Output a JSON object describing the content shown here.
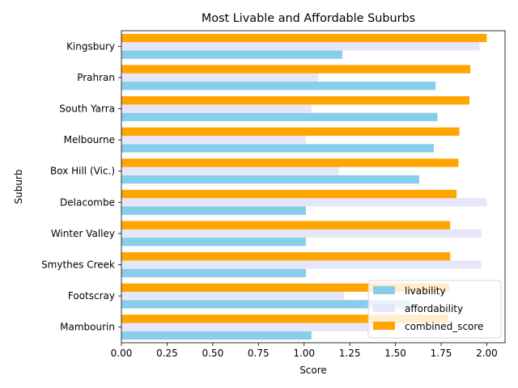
{
  "chart_data": {
    "type": "bar",
    "orientation": "horizontal",
    "title": "Most Livable and Affordable Suburbs",
    "xlabel": "Score",
    "ylabel": "Suburb",
    "xlim": [
      0,
      2.1
    ],
    "xticks": [
      "0.00",
      "0.25",
      "0.50",
      "0.75",
      "1.00",
      "1.25",
      "1.50",
      "1.75",
      "2.00"
    ],
    "categories": [
      "Kingsbury",
      "Prahran",
      "South Yarra",
      "Melbourne",
      "Box Hill (Vic.)",
      "Delacombe",
      "Winter Valley",
      "Smythes Creek",
      "Footscray",
      "Mambourin"
    ],
    "series": [
      {
        "name": "livability",
        "color": "#87ceeb",
        "values": [
          1.21,
          1.72,
          1.73,
          1.71,
          1.63,
          1.01,
          1.01,
          1.01,
          1.58,
          1.04
        ]
      },
      {
        "name": "affordability",
        "color": "#e6e6fa",
        "values": [
          1.96,
          1.08,
          1.04,
          1.01,
          1.19,
          2.0,
          1.97,
          1.97,
          1.22,
          1.5
        ]
      },
      {
        "name": "combined_score",
        "color": "#ffa500",
        "values": [
          2.0,
          1.91,
          1.905,
          1.85,
          1.845,
          1.835,
          1.8,
          1.8,
          1.795,
          1.79
        ]
      }
    ],
    "legend_position": "lower-right",
    "grid": false
  }
}
